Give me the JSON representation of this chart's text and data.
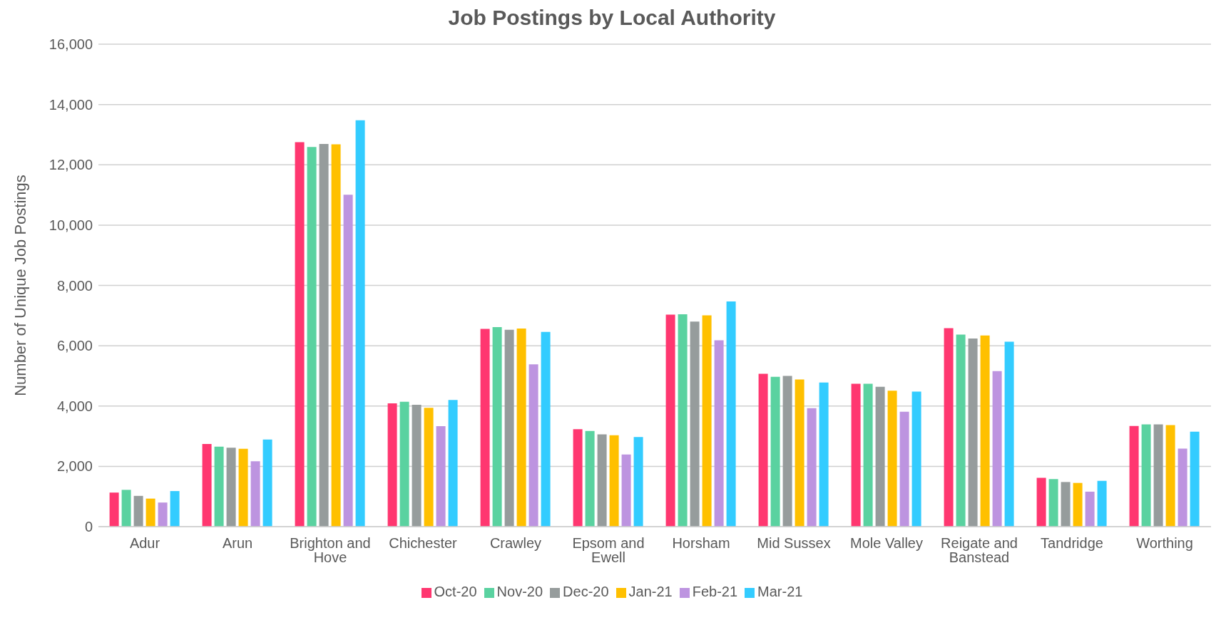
{
  "chart_data": {
    "type": "bar",
    "title": "Job Postings by Local Authority",
    "ylabel": "Number of Unique Job Postings",
    "categories": [
      "Adur",
      "Arun",
      "Brighton and Hove",
      "Chichester",
      "Crawley",
      "Epsom and Ewell",
      "Horsham",
      "Mid Sussex",
      "Mole Valley",
      "Reigate and Banstead",
      "Tandridge",
      "Worthing"
    ],
    "series": [
      {
        "name": "Oct-20",
        "color": "#ff3770",
        "values": [
          1130,
          2740,
          12750,
          4090,
          6560,
          3230,
          7030,
          5070,
          4740,
          6580,
          1620,
          3340
        ]
      },
      {
        "name": "Nov-20",
        "color": "#5ad2a0",
        "values": [
          1220,
          2650,
          12590,
          4140,
          6620,
          3170,
          7040,
          4970,
          4740,
          6370,
          1580,
          3390
        ]
      },
      {
        "name": "Dec-20",
        "color": "#969c9c",
        "values": [
          1020,
          2620,
          12690,
          4040,
          6530,
          3060,
          6800,
          5000,
          4640,
          6240,
          1480,
          3390
        ]
      },
      {
        "name": "Jan-21",
        "color": "#ffc000",
        "values": [
          930,
          2580,
          12680,
          3940,
          6570,
          3030,
          7010,
          4880,
          4510,
          6340,
          1450,
          3370
        ]
      },
      {
        "name": "Feb-21",
        "color": "#bd94e0",
        "values": [
          800,
          2170,
          11010,
          3330,
          5380,
          2390,
          6180,
          3930,
          3810,
          5160,
          1160,
          2590
        ]
      },
      {
        "name": "Mar-21",
        "color": "#33ccff",
        "values": [
          1180,
          2890,
          13480,
          4200,
          6460,
          2970,
          7470,
          4780,
          4480,
          6130,
          1520,
          3150
        ]
      }
    ],
    "ylim": [
      0,
      16000
    ],
    "yticks": [
      {
        "value": 0,
        "label": "0"
      },
      {
        "value": 2000,
        "label": "2,000"
      },
      {
        "value": 4000,
        "label": "4,000"
      },
      {
        "value": 6000,
        "label": "6,000"
      },
      {
        "value": 8000,
        "label": "8,000"
      },
      {
        "value": 10000,
        "label": "10,000"
      },
      {
        "value": 12000,
        "label": "12,000"
      },
      {
        "value": 14000,
        "label": "14,000"
      },
      {
        "value": 16000,
        "label": "16,000"
      }
    ],
    "grid": "y",
    "legend": "bottom"
  }
}
